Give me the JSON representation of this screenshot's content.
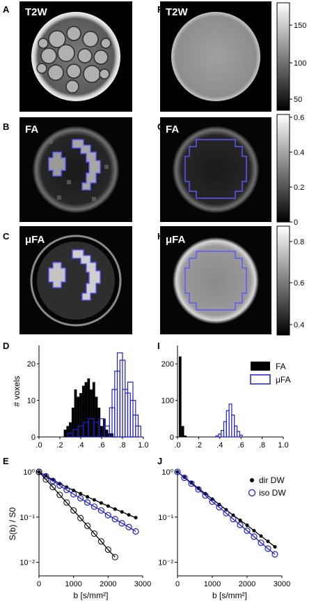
{
  "panels": {
    "A": {
      "letter": "A",
      "label": "T2W"
    },
    "B": {
      "letter": "B",
      "label": "FA"
    },
    "C": {
      "letter": "C",
      "label": "μFA"
    },
    "D": {
      "letter": "D"
    },
    "E": {
      "letter": "E"
    },
    "F": {
      "letter": "F",
      "label": "T2W"
    },
    "G": {
      "letter": "G",
      "label": "FA"
    },
    "H": {
      "letter": "H",
      "label": "μFA"
    },
    "I": {
      "letter": "I"
    },
    "J": {
      "letter": "J"
    }
  },
  "colorbars": [
    {
      "ticks": [
        "150",
        "100",
        "50"
      ]
    },
    {
      "ticks": [
        "0.6",
        "0.4",
        "0.2",
        "0"
      ]
    },
    {
      "ticks": [
        "0.8",
        "0.6",
        "0.4"
      ]
    }
  ],
  "colors": {
    "fa": "#000000",
    "ufa": "#1f1fd0",
    "roi": "#5a5aff"
  },
  "chart_data": [
    {
      "panel": "D",
      "type": "bar",
      "ylabel": "# voxels",
      "ylim": [
        0,
        25
      ],
      "x_ticks": [
        ".0",
        ".2",
        ".4",
        ".6",
        ".8",
        "1.0"
      ],
      "y_ticks": [
        "0",
        "10",
        "20"
      ],
      "series": [
        {
          "name": "FA",
          "style": "filled",
          "bins": [
            0.25,
            0.275,
            0.3,
            0.325,
            0.35,
            0.375,
            0.4,
            0.425,
            0.45,
            0.475,
            0.5,
            0.525,
            0.55,
            0.575,
            0.6,
            0.625,
            0.65,
            0.675,
            0.7
          ],
          "values": [
            2,
            3,
            4,
            8,
            13,
            11,
            12,
            14,
            15,
            16,
            13,
            15,
            11,
            8,
            3,
            5,
            2,
            1,
            1
          ]
        },
        {
          "name": "μFA",
          "style": "outline",
          "bins": [
            0.3,
            0.35,
            0.4,
            0.45,
            0.5,
            0.55,
            0.6,
            0.65,
            0.7,
            0.725,
            0.75,
            0.775,
            0.8,
            0.825,
            0.85,
            0.875,
            0.9,
            0.925,
            0.95
          ],
          "values": [
            1,
            2,
            3,
            4,
            5,
            4,
            5,
            3,
            8,
            13,
            18,
            23,
            21,
            13,
            12,
            15,
            10,
            6,
            3
          ]
        }
      ]
    },
    {
      "panel": "I",
      "type": "bar",
      "ylim": [
        0,
        250
      ],
      "x_ticks": [
        ".0",
        ".2",
        ".4",
        ".6",
        ".8",
        "1.0"
      ],
      "y_ticks": [
        "0",
        "100",
        "200"
      ],
      "legend": [
        "FA",
        "μFA"
      ],
      "series": [
        {
          "name": "FA",
          "style": "filled",
          "bins": [
            0.025,
            0.05,
            0.075
          ],
          "values": [
            220,
            30,
            4
          ]
        },
        {
          "name": "μFA",
          "style": "outline",
          "bins": [
            0.375,
            0.4,
            0.425,
            0.45,
            0.475,
            0.5,
            0.525,
            0.55,
            0.575,
            0.6
          ],
          "values": [
            3,
            8,
            18,
            42,
            72,
            90,
            60,
            30,
            15,
            5
          ]
        }
      ]
    },
    {
      "panel": "E",
      "type": "line",
      "xlabel": "b [s/mm²]",
      "ylabel": "S(b) / S0",
      "y_scale": "log",
      "ylim": [
        0.005,
        1
      ],
      "xlim": [
        0,
        3000
      ],
      "x_ticks": [
        "0",
        "1000",
        "2000",
        "3000"
      ],
      "y_ticks": [
        "10⁰",
        "10⁻¹",
        "10⁻²"
      ],
      "series": [
        {
          "name": "dir DW",
          "b": [
            0,
            200,
            400,
            600,
            800,
            1000,
            1200,
            1400,
            1600,
            1800,
            2000,
            2200,
            2400,
            2600,
            2800
          ],
          "values": [
            1,
            0.82,
            0.67,
            0.55,
            0.46,
            0.39,
            0.33,
            0.28,
            0.24,
            0.205,
            0.175,
            0.15,
            0.13,
            0.112,
            0.097
          ]
        },
        {
          "name": "iso DW",
          "b": [
            0,
            200,
            400,
            600,
            800,
            1000,
            1200,
            1400,
            1600,
            1800,
            2000,
            2200,
            2400,
            2600,
            2800
          ],
          "values": [
            1,
            0.8,
            0.63,
            0.5,
            0.4,
            0.32,
            0.26,
            0.21,
            0.17,
            0.14,
            0.11,
            0.09,
            0.073,
            0.06,
            0.048
          ]
        },
        {
          "name": "lower curve",
          "b": [
            0,
            200,
            400,
            600,
            800,
            1000,
            1200,
            1400,
            1600,
            1800,
            2000,
            2200
          ],
          "values": [
            1,
            0.68,
            0.46,
            0.31,
            0.21,
            0.14,
            0.095,
            0.064,
            0.043,
            0.029,
            0.019,
            0.013
          ]
        }
      ]
    },
    {
      "panel": "J",
      "type": "line",
      "xlabel": "b [s/mm²]",
      "y_scale": "log",
      "ylim": [
        0.005,
        1
      ],
      "xlim": [
        0,
        3000
      ],
      "x_ticks": [
        "0",
        "1000",
        "2000",
        "3000"
      ],
      "y_ticks": [
        "10⁰",
        "10⁻¹",
        "10⁻²"
      ],
      "legend": [
        "dir DW",
        "iso DW"
      ],
      "series": [
        {
          "name": "dir DW",
          "b": [
            0,
            200,
            400,
            600,
            800,
            1000,
            1200,
            1400,
            1600,
            1800,
            2000,
            2200,
            2400,
            2600,
            2800
          ],
          "values": [
            1,
            0.76,
            0.57,
            0.43,
            0.33,
            0.25,
            0.19,
            0.145,
            0.11,
            0.085,
            0.066,
            0.05,
            0.038,
            0.029,
            0.022
          ]
        },
        {
          "name": "iso DW",
          "b": [
            0,
            200,
            400,
            600,
            800,
            1000,
            1200,
            1400,
            1600,
            1800,
            2000,
            2200,
            2400,
            2600,
            2800
          ],
          "values": [
            1,
            0.74,
            0.55,
            0.41,
            0.3,
            0.22,
            0.165,
            0.122,
            0.09,
            0.067,
            0.05,
            0.037,
            0.027,
            0.02,
            0.015
          ]
        }
      ]
    }
  ]
}
